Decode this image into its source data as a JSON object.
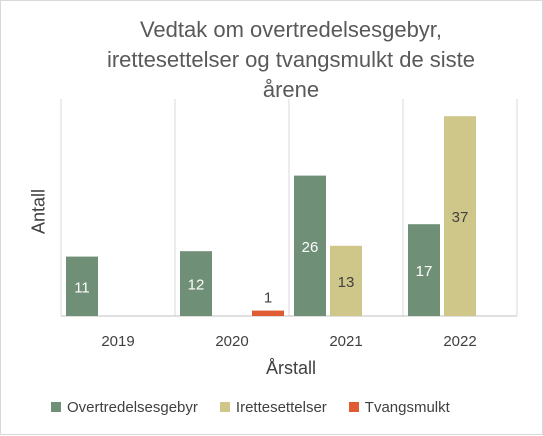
{
  "chart_data": {
    "type": "bar",
    "title": "Vedtak om overtredelsesgebyr,\nirettesettelser og tvangsmulkt de siste\nårene",
    "xlabel": "Årstall",
    "ylabel": "Antall",
    "categories": [
      "2019",
      "2020",
      "2021",
      "2022"
    ],
    "series": [
      {
        "name": "Overtredelsesgebyr",
        "color": "#6f8f77",
        "values": [
          11,
          12,
          26,
          17
        ]
      },
      {
        "name": "Irettesettelser",
        "color": "#cfc78a",
        "values": [
          null,
          null,
          13,
          37
        ]
      },
      {
        "name": "Tvangsmulkt",
        "color": "#e05a33",
        "values": [
          null,
          1,
          null,
          null
        ]
      }
    ],
    "ylim": [
      0,
      37
    ],
    "grid": "vertical-category-dividers",
    "legend": "bottom",
    "label_colors": {
      "on_dark": "#ffffff",
      "on_light": "#404040"
    }
  }
}
